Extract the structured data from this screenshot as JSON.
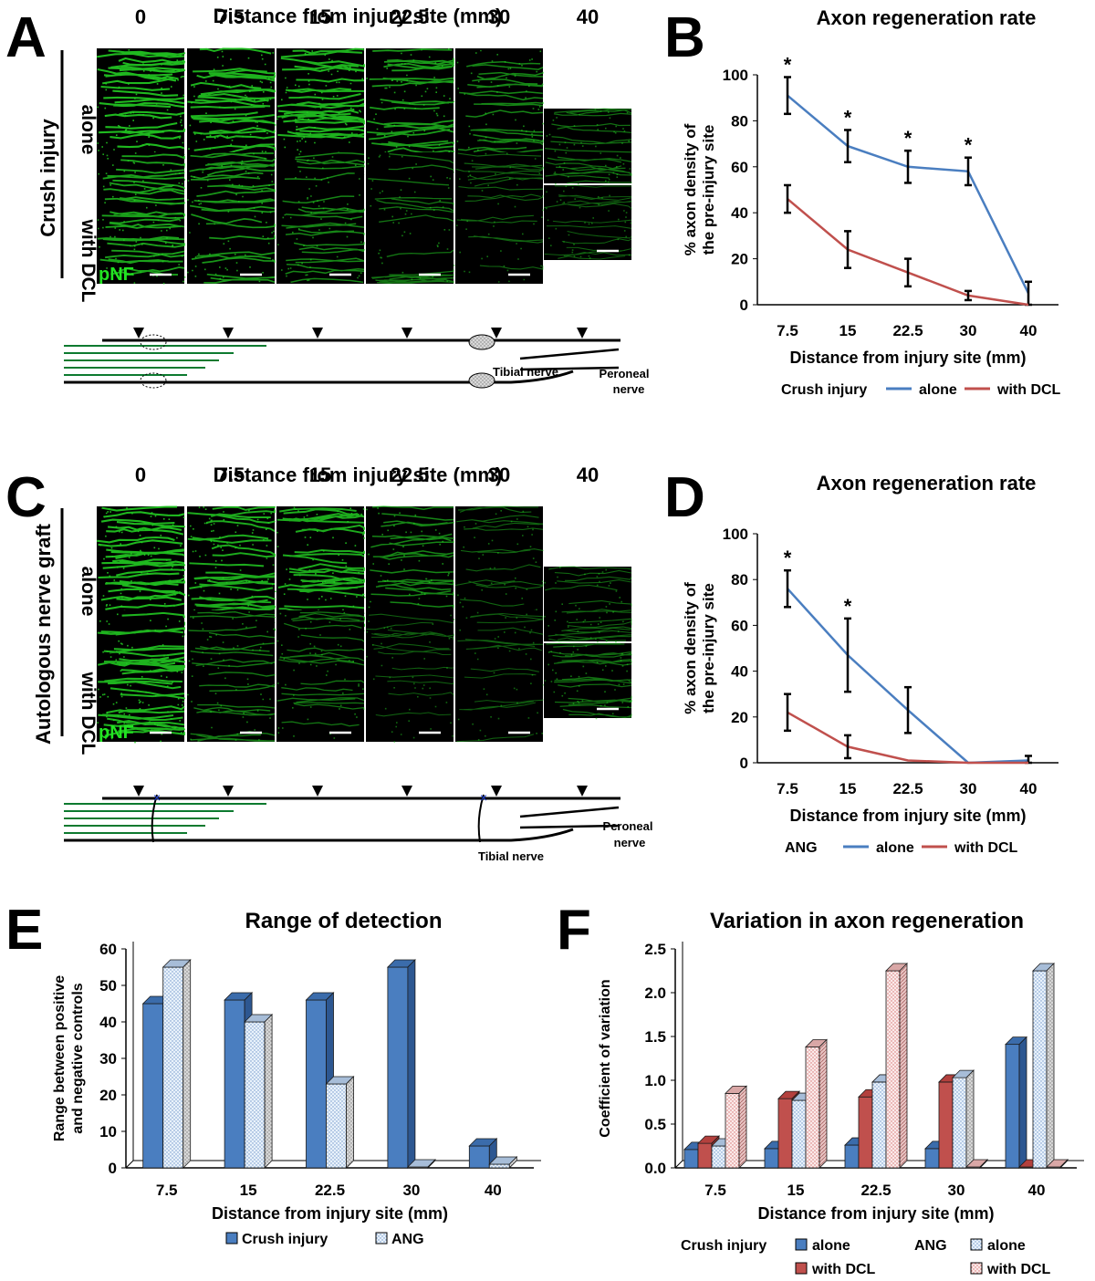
{
  "figure": {
    "panel_letters": [
      "A",
      "B",
      "C",
      "D",
      "E",
      "F"
    ],
    "colors": {
      "blue": "#4a7ec0",
      "red": "#c0504d",
      "green": "#19a84a",
      "micro_green": "#22cc22",
      "dark_green": "#0d7a2f",
      "error": "#000000"
    }
  },
  "micrographs": {
    "A": {
      "title": "Distance from injury site (mm)",
      "columns": [
        "0",
        "7.5",
        "15",
        "22.5",
        "30",
        "40"
      ],
      "group": "Crush injury",
      "rows": [
        "alone",
        "with DCL"
      ],
      "stain": "pNF",
      "label_tibial": "Tibial nerve",
      "label_peroneal_1": "Peroneal",
      "label_peroneal_2": "nerve",
      "intensity": [
        [
          1.0,
          0.95,
          0.95,
          0.75,
          0.55,
          0.35
        ],
        [
          0.8,
          0.7,
          0.55,
          0.4,
          0.25,
          0.2
        ]
      ]
    },
    "C": {
      "title": "Distance from injury site (mm)",
      "columns": [
        "0",
        "7.5",
        "15",
        "22.5",
        "30",
        "40"
      ],
      "group": "Autologous nerve graft",
      "rows": [
        "alone",
        "with DCL"
      ],
      "stain": "pNF",
      "label_tibial": "Tibial nerve",
      "label_peroneal_1": "Peroneal",
      "label_peroneal_2": "nerve",
      "intensity": [
        [
          1.0,
          0.9,
          0.9,
          0.55,
          0.25,
          0.25
        ],
        [
          0.95,
          0.45,
          0.4,
          0.2,
          0.2,
          0.35
        ]
      ]
    }
  },
  "chart_data": [
    {
      "panel": "B",
      "type": "line",
      "title": "Axon regeneration rate",
      "xlabel": "Distance from injury site (mm)",
      "ylabel_1": "% axon density of",
      "ylabel_2": "the pre-injury site",
      "categories": [
        "7.5",
        "15",
        "22.5",
        "30",
        "40"
      ],
      "ylim": [
        0,
        100
      ],
      "yticks": [
        0,
        20,
        40,
        60,
        80,
        100
      ],
      "legend_title": "Crush injury",
      "series": [
        {
          "name": "alone",
          "color": "#4a7ec0",
          "values": [
            91,
            69,
            60,
            58,
            5
          ],
          "errors": [
            8,
            7,
            7,
            6,
            5
          ]
        },
        {
          "name": "with DCL",
          "color": "#c0504d",
          "values": [
            46,
            24,
            14,
            4,
            0
          ],
          "errors": [
            6,
            8,
            6,
            2,
            0
          ]
        }
      ],
      "significance": [
        "*",
        "*",
        "*",
        "*",
        ""
      ]
    },
    {
      "panel": "D",
      "type": "line",
      "title": "Axon regeneration rate",
      "xlabel": "Distance from injury site (mm)",
      "ylabel_1": "% axon density of",
      "ylabel_2": "the pre-injury site",
      "categories": [
        "7.5",
        "15",
        "22.5",
        "30",
        "40"
      ],
      "ylim": [
        0,
        100
      ],
      "yticks": [
        0,
        20,
        40,
        60,
        80,
        100
      ],
      "legend_title": "ANG",
      "series": [
        {
          "name": "alone",
          "color": "#4a7ec0",
          "values": [
            76,
            47,
            23,
            0,
            1
          ],
          "errors": [
            8,
            16,
            10,
            0,
            2
          ]
        },
        {
          "name": "with DCL",
          "color": "#c0504d",
          "values": [
            22,
            7,
            1,
            0,
            0
          ],
          "errors": [
            8,
            5,
            0,
            0,
            0
          ]
        }
      ],
      "significance": [
        "*",
        "*",
        "",
        "",
        ""
      ]
    },
    {
      "panel": "E",
      "type": "bar",
      "title": "Range of detection",
      "xlabel": "Distance from injury site (mm)",
      "ylabel_1": "Range between positive",
      "ylabel_2": "and negative controls",
      "categories": [
        "7.5",
        "15",
        "22.5",
        "30",
        "40"
      ],
      "ylim": [
        0,
        60
      ],
      "yticks": [
        0,
        10,
        20,
        30,
        40,
        50,
        60
      ],
      "series": [
        {
          "name": "Crush injury",
          "pattern": "solid-blue",
          "values": [
            45,
            46,
            46,
            55,
            6
          ]
        },
        {
          "name": "ANG",
          "pattern": "dot-blue",
          "values": [
            55,
            40,
            23,
            0,
            1
          ]
        }
      ]
    },
    {
      "panel": "F",
      "type": "bar",
      "title": "Variation in axon regeneration",
      "xlabel": "Distance from injury site (mm)",
      "ylabel_1": "Coefficient of variation",
      "ylabel_2": "",
      "categories": [
        "7.5",
        "15",
        "22.5",
        "30",
        "40"
      ],
      "ylim": [
        0,
        2.5
      ],
      "yticks": [
        "0.0",
        "0.5",
        "1.0",
        "1.5",
        "2.0",
        "2.5"
      ],
      "legend_group_1": "Crush injury",
      "legend_group_2": "ANG",
      "series": [
        {
          "name": "alone",
          "group": "Crush injury",
          "pattern": "solid-blue",
          "values": [
            0.21,
            0.22,
            0.26,
            0.22,
            1.41
          ]
        },
        {
          "name": "with DCL",
          "group": "Crush injury",
          "pattern": "solid-red",
          "values": [
            0.28,
            0.79,
            0.81,
            0.98,
            0.0
          ]
        },
        {
          "name": "alone",
          "group": "ANG",
          "pattern": "dot-blue",
          "values": [
            0.25,
            0.77,
            0.98,
            1.03,
            2.25
          ]
        },
        {
          "name": "with DCL",
          "group": "ANG",
          "pattern": "dot-red",
          "values": [
            0.85,
            1.38,
            2.25,
            0.0,
            0.0
          ]
        }
      ]
    }
  ]
}
